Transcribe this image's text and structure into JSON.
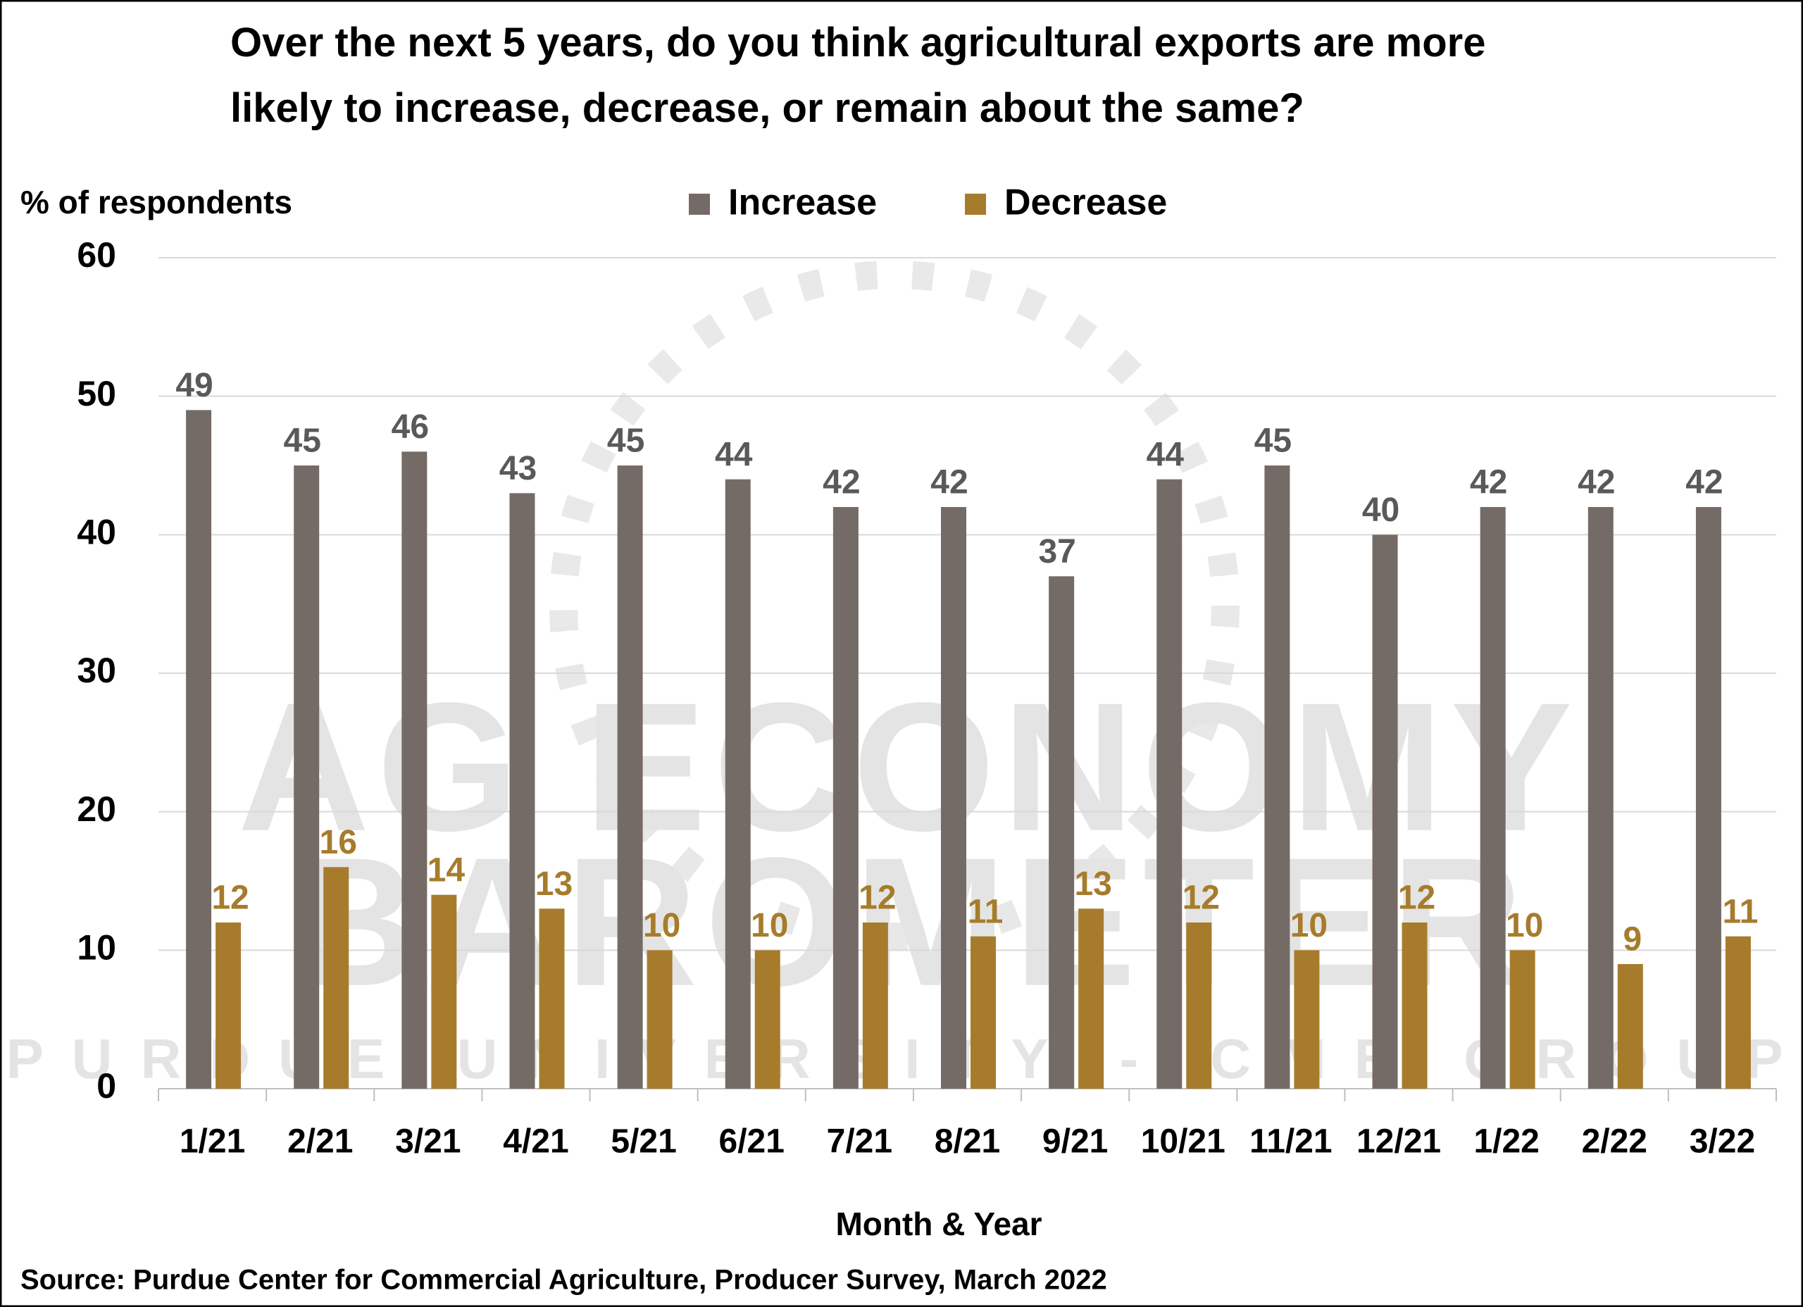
{
  "chart_data": {
    "type": "bar",
    "title": "Over the next 5 years, do you think agricultural exports are more likely to increase, decrease, or remain about the same?",
    "y_label": "% of respondents",
    "x_label": "Month & Year",
    "source": "Source: Purdue Center for Commercial Agriculture, Producer Survey, March 2022",
    "watermark": [
      "AG ECONOMY",
      "BAROMETER",
      "PURDUE UNIVERSITY - CME GROUP"
    ],
    "categories": [
      "1/21",
      "2/21",
      "3/21",
      "4/21",
      "5/21",
      "6/21",
      "7/21",
      "8/21",
      "9/21",
      "10/21",
      "11/21",
      "12/21",
      "1/22",
      "2/22",
      "3/22"
    ],
    "series": [
      {
        "name": "Increase",
        "color": "#756b66",
        "values": [
          49,
          45,
          46,
          43,
          45,
          44,
          42,
          42,
          37,
          44,
          45,
          40,
          42,
          42,
          42
        ]
      },
      {
        "name": "Decrease",
        "color": "#a67c2c",
        "values": [
          12,
          16,
          14,
          13,
          10,
          10,
          12,
          11,
          13,
          12,
          10,
          12,
          10,
          9,
          11
        ]
      }
    ],
    "ylim": [
      0,
      60
    ],
    "yticks": [
      0,
      10,
      20,
      30,
      40,
      50,
      60
    ],
    "grid": true
  }
}
